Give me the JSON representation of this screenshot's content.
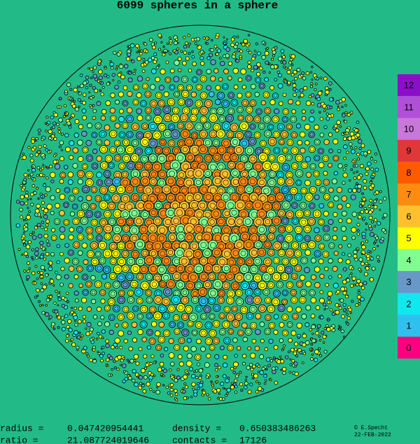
{
  "title": "6099 spheres in a sphere",
  "legend": [
    {
      "label": "12",
      "color": "#8a10c8"
    },
    {
      "label": "11",
      "color": "#b050d8"
    },
    {
      "label": "10",
      "color": "#c878d8"
    },
    {
      "label": "9",
      "color": "#e03838"
    },
    {
      "label": "8",
      "color": "#ff5a00"
    },
    {
      "label": "7",
      "color": "#ff8c10"
    },
    {
      "label": "6",
      "color": "#ffc030"
    },
    {
      "label": "5",
      "color": "#ffff00"
    },
    {
      "label": "4",
      "color": "#80ff90"
    },
    {
      "label": "3",
      "color": "#6898c8"
    },
    {
      "label": "2",
      "color": "#10e8f0"
    },
    {
      "label": "1",
      "color": "#30c0f0"
    },
    {
      "label": "0",
      "color": "#ff0080"
    }
  ],
  "stats": [
    {
      "name": "radius =",
      "value": "0.047420954441"
    },
    {
      "name": "density =",
      "value": "0.650383486263"
    },
    {
      "name": "ratio =",
      "value": "21.087724019646"
    },
    {
      "name": "contacts =",
      "value": "17126"
    }
  ],
  "credit": "© E.Specht",
  "date": "22-FEB-2022"
}
